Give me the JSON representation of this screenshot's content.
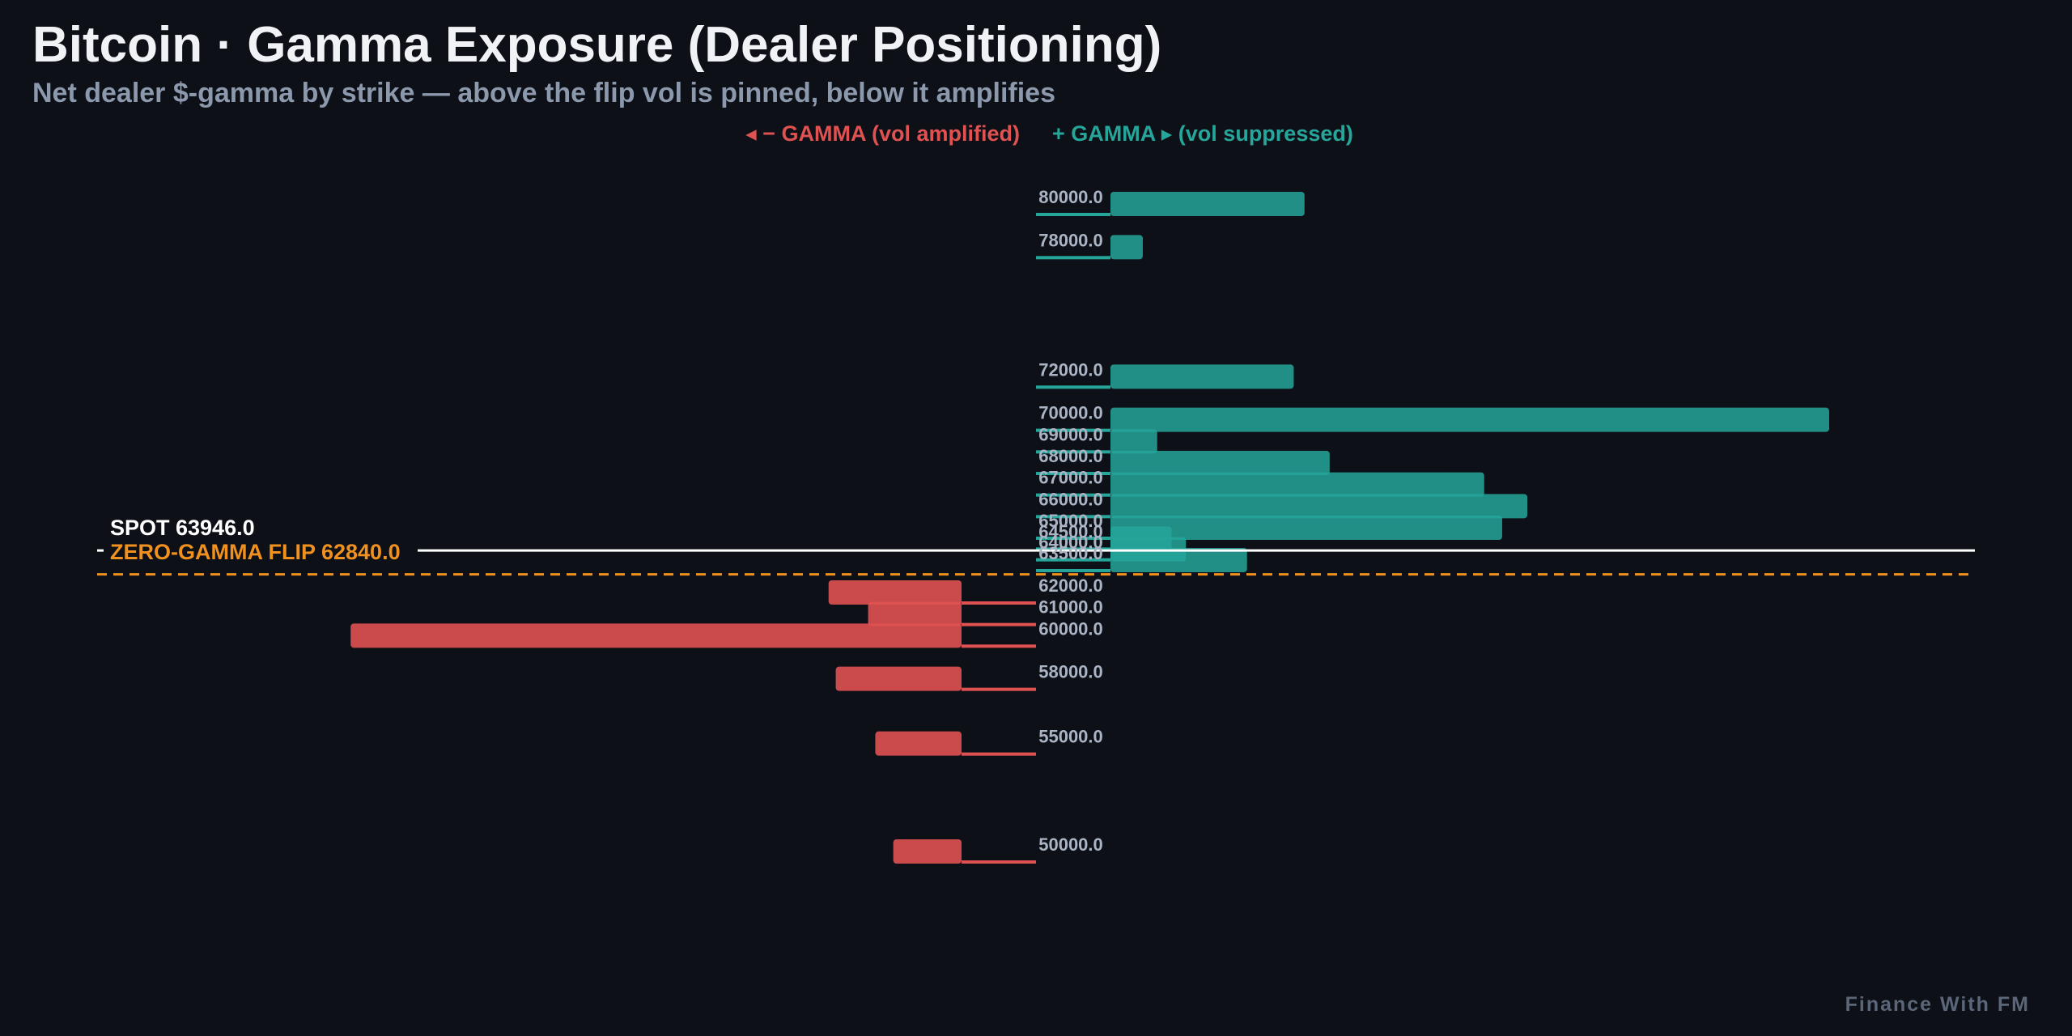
{
  "page": {
    "title": "Bitcoin · Gamma Exposure (Dealer Positioning)",
    "subtitle": "Net dealer $-gamma by strike — above the flip vol is pinned, below it amplifies",
    "footer": "Finance With FM"
  },
  "legend": {
    "negative": "◂ − GAMMA (vol amplified)",
    "positive": "+ GAMMA ▸ (vol suppressed)"
  },
  "colors": {
    "background": "#0d1017",
    "positive": "#26a69a",
    "negative": "#e05252",
    "spot_line": "#ffffff",
    "flip_line": "#f0901e",
    "label": "#aab4c4"
  },
  "chart_data": {
    "type": "bar",
    "orientation": "horizontal",
    "y_axis": "strike",
    "ylim": [
      49000,
      81000
    ],
    "grid": false,
    "legend_position": "top-center",
    "spot": {
      "label": "SPOT 63946.0",
      "value": 63946.0
    },
    "flip": {
      "label": "ZERO-GAMMA FLIP 62840.0",
      "value": 62840.0
    },
    "series": [
      {
        "name": "+ GAMMA",
        "sign": "positive",
        "points": [
          {
            "strike": "80000.0",
            "value": 2.7
          },
          {
            "strike": "78000.0",
            "value": 0.45
          },
          {
            "strike": "72000.0",
            "value": 2.55
          },
          {
            "strike": "70000.0",
            "value": 10.0
          },
          {
            "strike": "69000.0",
            "value": 0.65
          },
          {
            "strike": "68000.0",
            "value": 3.05
          },
          {
            "strike": "67000.0",
            "value": 5.2
          },
          {
            "strike": "66000.0",
            "value": 5.8
          },
          {
            "strike": "65000.0",
            "value": 5.45
          },
          {
            "strike": "64500.0",
            "value": 0.85
          },
          {
            "strike": "64000.0",
            "value": 1.05
          },
          {
            "strike": "63500.0",
            "value": 1.9
          }
        ]
      },
      {
        "name": "− GAMMA",
        "sign": "negative",
        "points": [
          {
            "strike": "62000.0",
            "value": -1.85
          },
          {
            "strike": "61000.0",
            "value": -1.3
          },
          {
            "strike": "60000.0",
            "value": -8.5
          },
          {
            "strike": "58000.0",
            "value": -1.75
          },
          {
            "strike": "55000.0",
            "value": -1.2
          },
          {
            "strike": "50000.0",
            "value": -0.95
          }
        ]
      }
    ]
  }
}
